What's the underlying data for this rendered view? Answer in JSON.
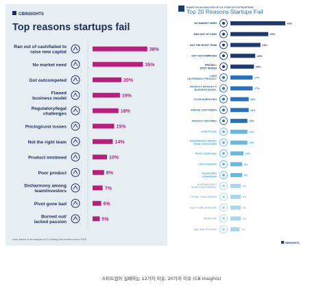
{
  "caption": "스타트업이 실패하는 12가지 이유, 20가지 이유 (CB Insights)",
  "chart_data": [
    {
      "type": "bar",
      "orientation": "horizontal",
      "brand": "CBINSIGHTS",
      "title": "Top reasons startups fail",
      "note": "Note: Based on an analysis of 111 startup post-mortems since 2018.",
      "bar_color": "#b5217a",
      "categories": [
        "Ran out of cash/failed to raise new capital",
        "No market need",
        "Got outcompeted",
        "Flawed business model",
        "Regulatory/legal challenges",
        "Pricing/cost issues",
        "Not the right team",
        "Product mistimed",
        "Poor product",
        "Disharmony among team/investors",
        "Pivot gone bad",
        "Burned out/ lacked passion"
      ],
      "values": [
        38,
        35,
        20,
        19,
        18,
        15,
        14,
        10,
        8,
        7,
        6,
        5
      ],
      "value_labels": [
        "38%",
        "35%",
        "20%",
        "19%",
        "18%",
        "15%",
        "14%",
        "10%",
        "8%",
        "7%",
        "6%",
        "5%"
      ],
      "icons": [
        "cash-icon",
        "handshake-icon",
        "boxing-glove-icon",
        "document-icon",
        "scales-icon",
        "price-tag-icon",
        "team-icon",
        "clock-icon",
        "star-rating-icon",
        "broken-link-icon",
        "pivot-icon",
        "sleep-icon"
      ],
      "xlim": [
        0,
        40
      ]
    },
    {
      "type": "bar",
      "orientation": "horizontal",
      "subtitle": "BASED ON AN ANALYSIS OF 101 STARTUP POSTMORTEMS",
      "title": "Top 20 Reasons Startups Fail",
      "brand": "CBINSIGHTS",
      "categories": [
        "NO MARKET NEED",
        "RAN OUT OF CASH",
        "NOT THE RIGHT TEAM",
        "GOT OUTCOMPETED",
        "PRICING / COST ISSUES",
        "USER UN-FRIENDLY PRODUCT",
        "PRODUCT WITHOUT A BUSINESS MODEL",
        "POOR MARKETING",
        "IGNORE CUSTOMERS",
        "PRODUCT MISTIMED",
        "LOSE FOCUS",
        "DISHARMONY AMONG TEAM / INVESTORS",
        "PIVOT GONE BAD",
        "LACK PASSION",
        "FAILED GEO EXPANSION",
        "NO FINANCING / INVESTOR INTEREST",
        "LEGAL CHALLENGES",
        "DON'T USE NETWORK",
        "BURN OUT",
        "FAILURE TO PIVOT"
      ],
      "values": [
        42,
        29,
        23,
        19,
        18,
        17,
        17,
        14,
        14,
        13,
        13,
        13,
        10,
        9,
        9,
        8,
        8,
        8,
        8,
        7
      ],
      "value_labels": [
        "42%",
        "29%",
        "23%",
        "19%",
        "18%",
        "17%",
        "17%",
        "14%",
        "14%",
        "13%",
        "13%",
        "13%",
        "10%",
        "9%",
        "9%",
        "8%",
        "8%",
        "8%",
        "8%",
        "7%"
      ],
      "colors": [
        "#1f3a6e",
        "#1f3a6e",
        "#1f3a6e",
        "#1f3a6e",
        "#1f3a6e",
        "#2d6fb6",
        "#2d6fb6",
        "#2d6fb6",
        "#2d6fb6",
        "#2d6fb6",
        "#6cb8dd",
        "#6cb8dd",
        "#6cb8dd",
        "#6cb8dd",
        "#6cb8dd",
        "#a9d6ec",
        "#a9d6ec",
        "#a9d6ec",
        "#a9d6ec",
        "#a9d6ec"
      ],
      "label_colors": [
        "#1f3a6e",
        "#1f3a6e",
        "#1f3a6e",
        "#1f3a6e",
        "#1f3a6e",
        "#2d6fb6",
        "#2d6fb6",
        "#2d6fb6",
        "#2d6fb6",
        "#2d6fb6",
        "#4aa3cf",
        "#4aa3cf",
        "#4aa3cf",
        "#4aa3cf",
        "#4aa3cf",
        "#8ab6cc",
        "#8ab6cc",
        "#8ab6cc",
        "#8ab6cc",
        "#8ab6cc"
      ],
      "xlim": [
        0,
        42
      ]
    }
  ]
}
